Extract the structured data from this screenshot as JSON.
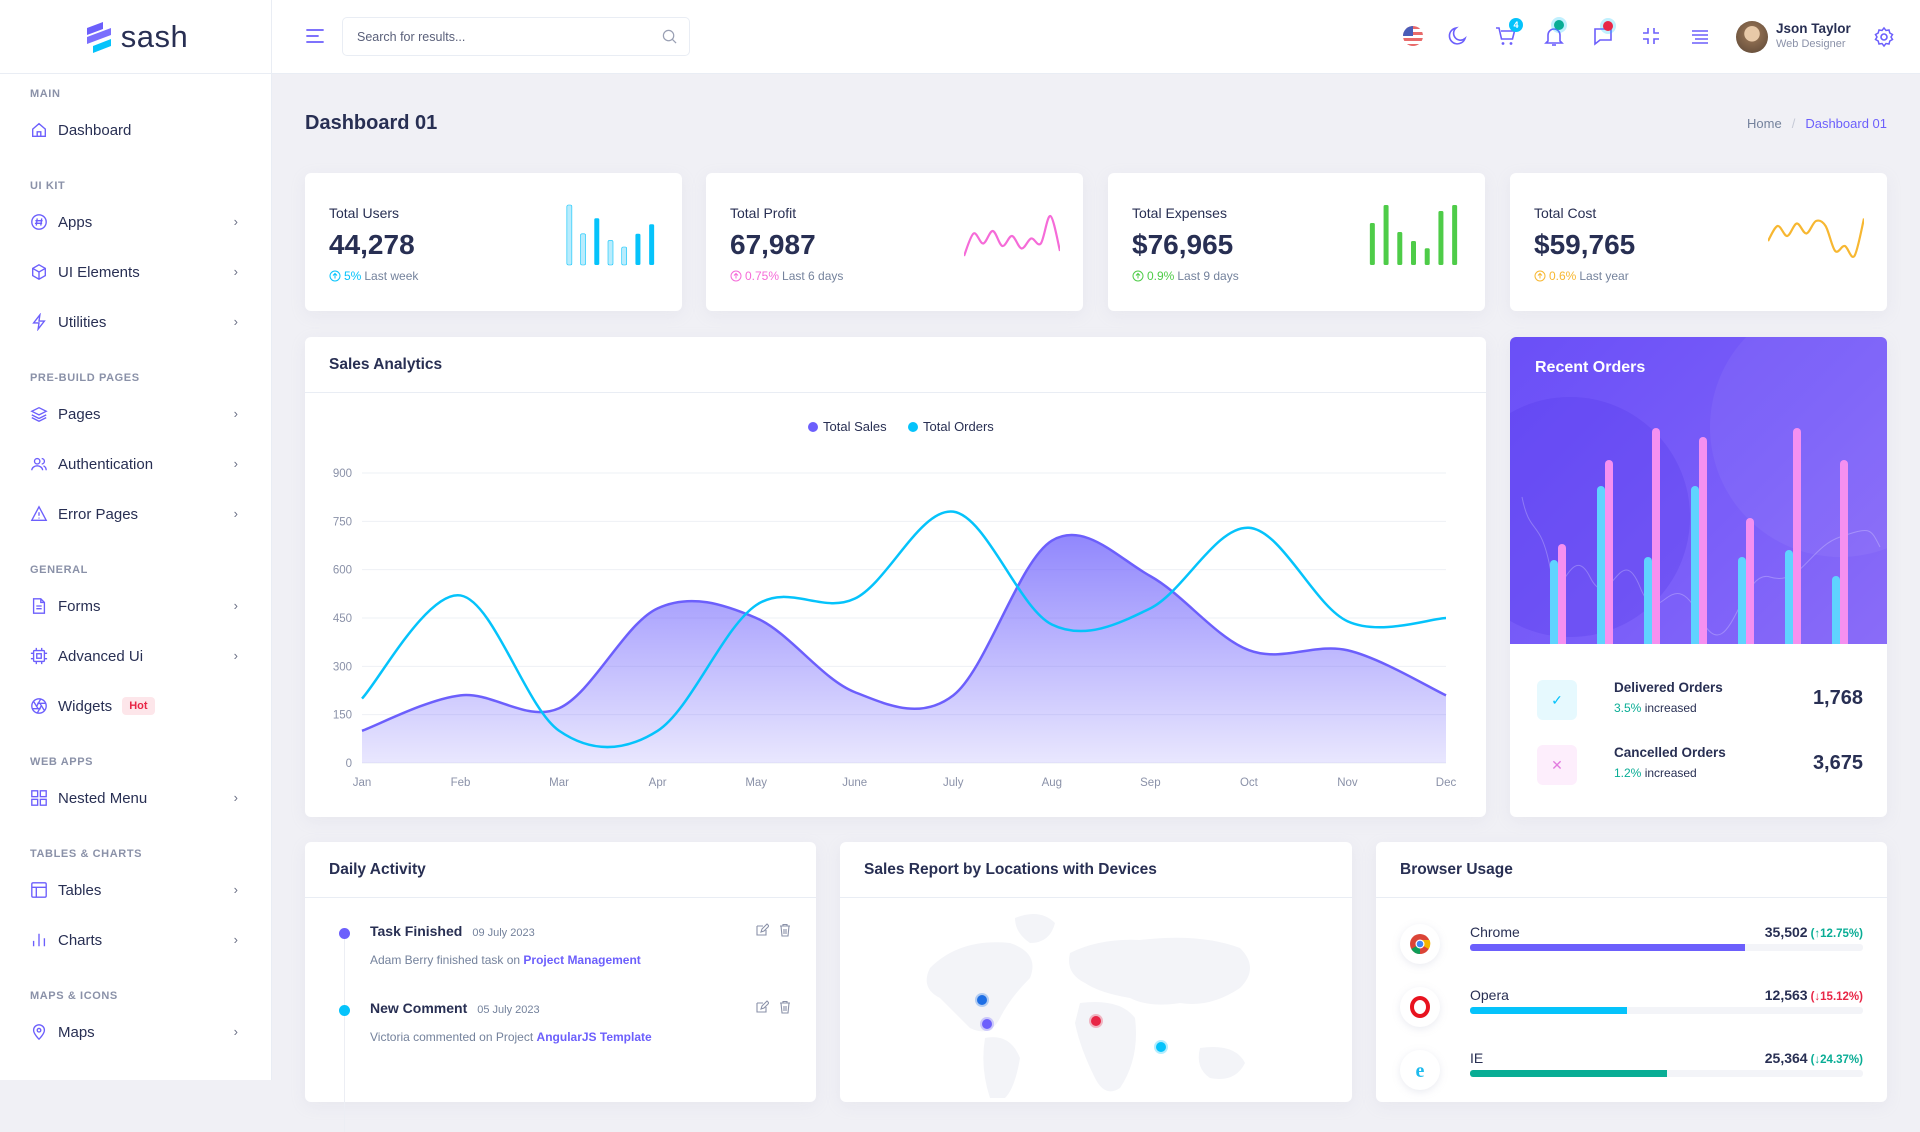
{
  "brand": {
    "name": "sash"
  },
  "colors": {
    "primary": "#6c5ffc",
    "secondary": "#05c3fb",
    "success": "#09ad95",
    "danger": "#e82646",
    "warning": "#f7b731",
    "pink": "#f56bd8",
    "green": "#4ecc48"
  },
  "sidebar": {
    "sections": [
      {
        "title": "MAIN",
        "items": [
          {
            "label": "Dashboard",
            "icon": "home-icon",
            "arrow": false
          }
        ]
      },
      {
        "title": "UI KIT",
        "items": [
          {
            "label": "Apps",
            "icon": "hash-icon",
            "arrow": true
          },
          {
            "label": "UI Elements",
            "icon": "package-icon",
            "arrow": true
          },
          {
            "label": "Utilities",
            "icon": "zap-icon",
            "arrow": true
          }
        ]
      },
      {
        "title": "PRE-BUILD PAGES",
        "items": [
          {
            "label": "Pages",
            "icon": "layers-icon",
            "arrow": true
          },
          {
            "label": "Authentication",
            "icon": "users-icon",
            "arrow": true
          },
          {
            "label": "Error Pages",
            "icon": "alert-triangle-icon",
            "arrow": true
          }
        ]
      },
      {
        "title": "GENERAL",
        "items": [
          {
            "label": "Forms",
            "icon": "file-text-icon",
            "arrow": true
          },
          {
            "label": "Advanced Ui",
            "icon": "cpu-icon",
            "arrow": true
          },
          {
            "label": "Widgets",
            "icon": "aperture-icon",
            "arrow": false,
            "badge": "Hot"
          }
        ]
      },
      {
        "title": "WEB APPS",
        "items": [
          {
            "label": "Nested Menu",
            "icon": "grid-icon",
            "arrow": true
          }
        ]
      },
      {
        "title": "TABLES & CHARTS",
        "items": [
          {
            "label": "Tables",
            "icon": "table-icon",
            "arrow": true
          },
          {
            "label": "Charts",
            "icon": "bar-chart-icon",
            "arrow": true
          }
        ]
      },
      {
        "title": "MAPS & ICONS",
        "items": [
          {
            "label": "Maps",
            "icon": "map-pin-icon",
            "arrow": true
          }
        ]
      }
    ]
  },
  "header": {
    "search_placeholder": "Search for results...",
    "cart_count": "4",
    "user": {
      "name": "Json Taylor",
      "role": "Web Designer"
    }
  },
  "page": {
    "title": "Dashboard 01",
    "breadcrumb": [
      "Home",
      "Dashboard 01"
    ]
  },
  "stats": [
    {
      "label": "Total Users",
      "value": "44,278",
      "change": "5%",
      "period": "Last week",
      "color": "#05c3fb",
      "chart": "bar",
      "values": [
        100,
        52,
        78,
        41,
        30,
        52,
        68
      ]
    },
    {
      "label": "Total Profit",
      "value": "67,987",
      "change": "0.75%",
      "period": "Last 6 days",
      "color": "#f56bd8",
      "chart": "line",
      "values": [
        10,
        55,
        35,
        60,
        30,
        50,
        25,
        45,
        35,
        90,
        20
      ]
    },
    {
      "label": "Total Expenses",
      "value": "$76,965",
      "change": "0.9%",
      "period": "Last 9 days",
      "color": "#4ecc48",
      "chart": "bar",
      "values": [
        70,
        100,
        55,
        40,
        28,
        90,
        100
      ]
    },
    {
      "label": "Total Cost",
      "value": "$59,765",
      "change": "0.6%",
      "period": "Last year",
      "color": "#f7b731",
      "chart": "line",
      "values": [
        40,
        70,
        50,
        75,
        55,
        80,
        70,
        20,
        30,
        10,
        85
      ]
    }
  ],
  "sales_analytics": {
    "title": "Sales Analytics",
    "chart_data": {
      "type": "area",
      "categories": [
        "Jan",
        "Feb",
        "Mar",
        "Apr",
        "May",
        "June",
        "July",
        "Aug",
        "Sep",
        "Oct",
        "Nov",
        "Dec"
      ],
      "ylim": [
        0,
        900
      ],
      "yticks": [
        0,
        150,
        300,
        450,
        600,
        750,
        900
      ],
      "legend": "top-center",
      "grid": true,
      "series": [
        {
          "name": "Total Sales",
          "color": "#6c5ffc",
          "filled": true,
          "values": [
            100,
            210,
            170,
            480,
            450,
            220,
            210,
            690,
            580,
            350,
            350,
            210
          ]
        },
        {
          "name": "Total Orders",
          "color": "#05c3fb",
          "filled": false,
          "values": [
            200,
            520,
            100,
            100,
            490,
            510,
            780,
            430,
            480,
            730,
            440,
            450
          ]
        }
      ]
    }
  },
  "recent_orders": {
    "title": "Recent Orders",
    "chart_data": {
      "type": "bar",
      "series": [
        {
          "color": "#5fd3ff",
          "values": [
            87,
            161,
            90,
            161,
            90,
            97,
            71
          ]
        },
        {
          "color": "#f590f0",
          "values": [
            103,
            187,
            219,
            210,
            129,
            219,
            187
          ]
        }
      ],
      "ylim": [
        0,
        230
      ]
    },
    "rows": [
      {
        "title": "Delivered Orders",
        "change": "3.5%",
        "suffix": "increased",
        "value": "1,768",
        "icon": "check-icon"
      },
      {
        "title": "Cancelled Orders",
        "change": "1.2%",
        "suffix": "increased",
        "value": "3,675",
        "icon": "x-icon"
      }
    ]
  },
  "daily_activity": {
    "title": "Daily Activity",
    "items": [
      {
        "title": "Task Finished",
        "date": "09 July 2023",
        "text": "Adam Berry finished task on",
        "link": "Project Management",
        "dot": "#6c5ffc"
      },
      {
        "title": "New Comment",
        "date": "05 July 2023",
        "text": "Victoria commented on Project",
        "link": "AngularJS Template",
        "dot": "#05c3fb"
      }
    ]
  },
  "sales_report": {
    "title": "Sales Report by Locations with Devices",
    "markers": [
      "#1f6fe5",
      "#6c5ffc",
      "#e82646",
      "#05c3fb"
    ]
  },
  "browser_usage": {
    "title": "Browser Usage",
    "items": [
      {
        "name": "Chrome",
        "value": "35,502",
        "change": "↑12.75%",
        "trend": "up",
        "percent": 70,
        "color": "#6c5ffc",
        "icon": "chrome-icon"
      },
      {
        "name": "Opera",
        "value": "12,563",
        "change": "↓15.12%",
        "trend": "down",
        "percent": 40,
        "color": "#05c3fb",
        "icon": "opera-icon"
      },
      {
        "name": "IE",
        "value": "25,364",
        "change": "↓24.37%",
        "trend": "down-green",
        "percent": 50,
        "color": "#09ad95",
        "icon": "ie-icon"
      }
    ]
  }
}
